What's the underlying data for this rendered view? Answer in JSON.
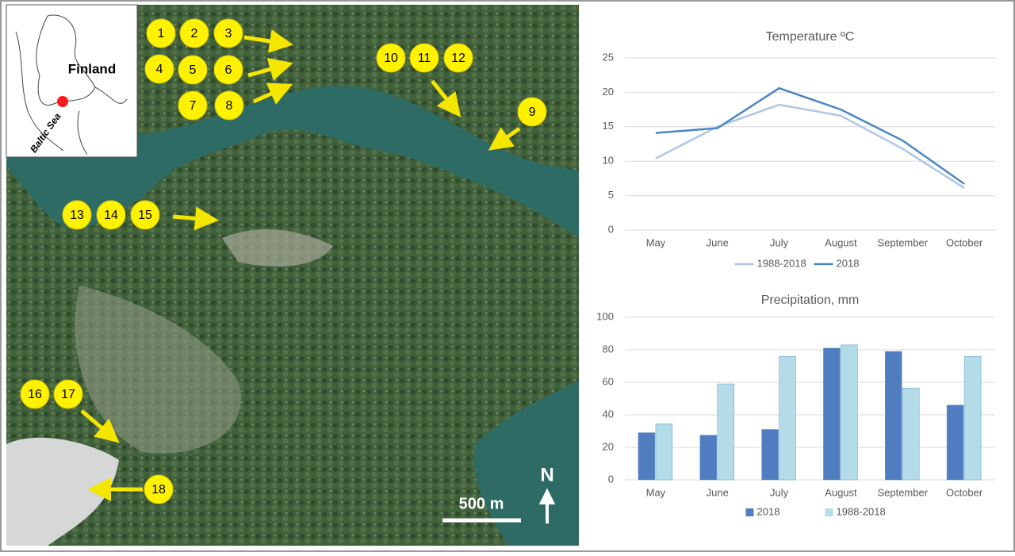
{
  "map": {
    "inset_labels": {
      "country": "Finland",
      "sea": "Baltic Sea"
    },
    "markers": [
      "1",
      "2",
      "3",
      "4",
      "5",
      "6",
      "7",
      "8",
      "9",
      "10",
      "11",
      "12",
      "13",
      "14",
      "15",
      "16",
      "17",
      "18"
    ],
    "scale_label": "500 m",
    "north_label": "N"
  },
  "chart_data": [
    {
      "type": "line",
      "title": "Temperature ºC",
      "categories": [
        "May",
        "June",
        "July",
        "August",
        "September",
        "October"
      ],
      "series": [
        {
          "name": "1988-2018",
          "color": "#aec6e6",
          "values": [
            10.4,
            15.0,
            18.2,
            16.6,
            11.8,
            6.1
          ]
        },
        {
          "name": "2018",
          "color": "#4a86c5",
          "values": [
            14.1,
            14.8,
            20.6,
            17.5,
            13.0,
            6.7
          ]
        }
      ],
      "ylim": [
        0,
        25
      ],
      "yticks": [
        0,
        5,
        10,
        15,
        20,
        25
      ],
      "grid": true,
      "legend": "bottom"
    },
    {
      "type": "bar",
      "title": "Precipitation, mm",
      "categories": [
        "May",
        "June",
        "July",
        "August",
        "September",
        "October"
      ],
      "series": [
        {
          "name": "2018",
          "color": "#4f7dc0",
          "values": [
            29,
            27.5,
            31,
            81,
            79,
            46
          ]
        },
        {
          "name": "1988-2018",
          "color": "#b3dce8",
          "values": [
            34.5,
            59,
            76,
            83,
            56.5,
            76
          ]
        }
      ],
      "ylim": [
        0,
        100
      ],
      "yticks": [
        0,
        20,
        40,
        60,
        80,
        100
      ],
      "grid": true,
      "legend": "bottom"
    }
  ]
}
